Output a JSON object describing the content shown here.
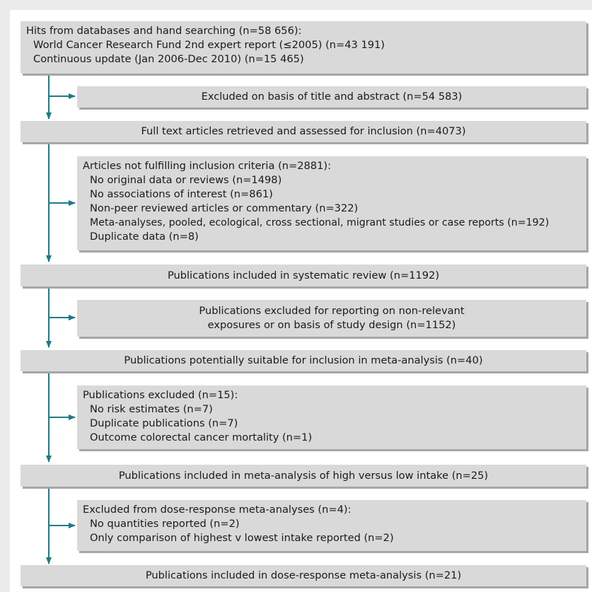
{
  "boxes": {
    "hits": {
      "title": "Hits from databases and hand searching (n=58 656):",
      "items": [
        "World Cancer Research Fund 2nd expert report (≤2005) (n=43 191)",
        "Continuous update (Jan 2006-Dec 2010) (n=15 465)"
      ]
    },
    "excluded_title": {
      "text": "Excluded on basis of title and abstract (n=54 583)"
    },
    "full_text": {
      "text": "Full text articles retrieved and assessed for inclusion (n=4073)"
    },
    "not_fulfilling": {
      "title": "Articles not fulfilling inclusion criteria (n=2881):",
      "items": [
        "No original data or reviews (n=1498)",
        "No associations of interest (n=861)",
        "Non-peer reviewed articles or commentary (n=322)",
        "Meta-analyses, pooled, ecological, cross sectional, migrant studies or case reports (n=192)",
        "Duplicate data (n=8)"
      ]
    },
    "systematic_review": {
      "text": "Publications included in systematic review (n=1192)"
    },
    "excluded_nonrelevant": {
      "line1": "Publications excluded for reporting on non-relevant",
      "line2": "exposures or on basis of study design (n=1152)"
    },
    "potentially_suitable": {
      "text": "Publications potentially suitable for inclusion in meta-analysis (n=40)"
    },
    "publications_excluded": {
      "title": "Publications excluded (n=15):",
      "items": [
        "No risk estimates (n=7)",
        "Duplicate publications (n=7)",
        "Outcome colorectal cancer mortality (n=1)"
      ]
    },
    "high_vs_low": {
      "text": "Publications included in meta-analysis of high versus low intake (n=25)"
    },
    "excluded_dose": {
      "title": "Excluded from dose-response meta-analyses (n=4):",
      "items": [
        "No quantities reported (n=2)",
        "Only comparison of highest v lowest intake reported (n=2)"
      ]
    },
    "dose_response": {
      "text": "Publications included in dose-response meta-analysis (n=21)"
    }
  },
  "colors": {
    "arrow": "#1e7b84",
    "box": "#d9d9d9",
    "shadow": "#a6a6a6"
  }
}
